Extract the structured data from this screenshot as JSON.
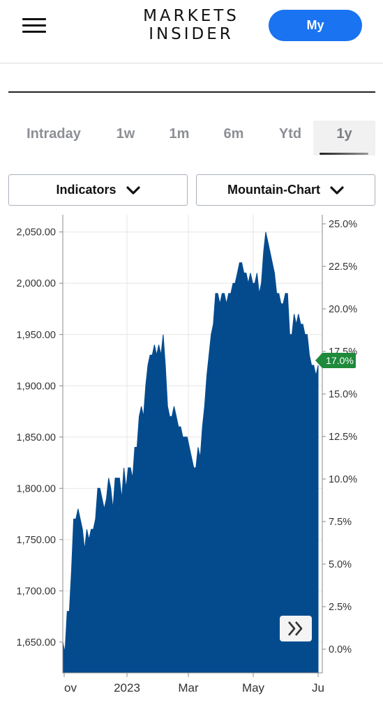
{
  "header": {
    "logo_line1": "MARKETS",
    "logo_line2": "INSIDER",
    "my_button": "My",
    "menu_icon": "hamburger-menu-icon"
  },
  "tabs": [
    {
      "label": "Intraday",
      "active": false
    },
    {
      "label": "1w",
      "active": false
    },
    {
      "label": "1m",
      "active": false
    },
    {
      "label": "6m",
      "active": false
    },
    {
      "label": "Ytd",
      "active": false
    },
    {
      "label": "1y",
      "active": true
    }
  ],
  "dropdowns": {
    "indicators": "Indicators",
    "chart_type": "Mountain-Chart",
    "icon": "chevron-down-icon"
  },
  "chart_data": {
    "type": "area",
    "color": "#044b8e",
    "x_ticks": [
      "ov",
      "2023",
      "Mar",
      "May",
      "Ju"
    ],
    "y_left_ticks": [
      "2,050.00",
      "2,000.00",
      "1,950.00",
      "1,900.00",
      "1,850.00",
      "1,800.00",
      "1,750.00",
      "1,700.00",
      "1,650.00"
    ],
    "y_right_ticks": [
      "25.0%",
      "22.5%",
      "20.0%",
      "17.5%",
      "15.0%",
      "12.5%",
      "10.0%",
      "7.5%",
      "5.0%",
      "2.5%",
      "0.0%"
    ],
    "ylim": [
      1620,
      2060
    ],
    "current_badge": "17.0%",
    "badge_color": "#1f8a3b",
    "expand_icon": "double-chevron-right-icon",
    "values": [
      1650,
      1640,
      1680,
      1680,
      1720,
      1770,
      1770,
      1780,
      1770,
      1760,
      1740,
      1760,
      1750,
      1760,
      1760,
      1770,
      1800,
      1800,
      1790,
      1780,
      1790,
      1810,
      1800,
      1780,
      1810,
      1810,
      1810,
      1790,
      1820,
      1800,
      1820,
      1820,
      1810,
      1840,
      1840,
      1870,
      1880,
      1870,
      1900,
      1920,
      1930,
      1930,
      1940,
      1930,
      1940,
      1930,
      1950,
      1920,
      1880,
      1870,
      1870,
      1880,
      1870,
      1860,
      1860,
      1850,
      1850,
      1850,
      1840,
      1830,
      1820,
      1820,
      1840,
      1830,
      1860,
      1880,
      1910,
      1930,
      1950,
      1960,
      1990,
      1990,
      1980,
      1990,
      1990,
      1980,
      1990,
      1990,
      2000,
      2000,
      2010,
      2020,
      2020,
      2010,
      2010,
      2000,
      2010,
      2000,
      2000,
      2010,
      1990,
      2000,
      2030,
      2050,
      2040,
      2030,
      2020,
      2010,
      1990,
      1990,
      1980,
      1980,
      1990,
      1990,
      1950,
      1950,
      1970,
      1960,
      1970,
      1960,
      1960,
      1950,
      1950,
      1930,
      1920,
      1920,
      1910,
      1920
    ]
  }
}
